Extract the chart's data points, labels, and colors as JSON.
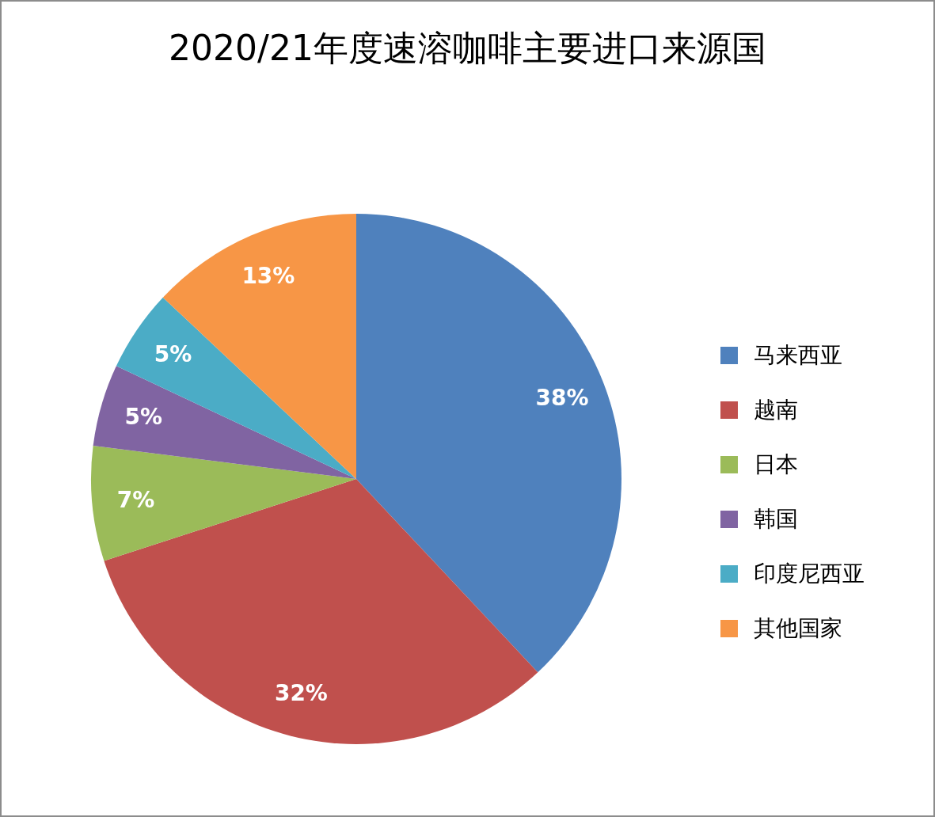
{
  "chart_data": {
    "type": "pie",
    "title": "2020/21年度速溶咖啡主要进口来源国",
    "categories": [
      "马来西亚",
      "越南",
      "日本",
      "韩国",
      "印度尼西亚",
      "其他国家"
    ],
    "values": [
      38,
      32,
      7,
      5,
      5,
      13
    ],
    "colors": [
      "#4f81bd",
      "#c0504d",
      "#9bbb59",
      "#8064a2",
      "#4bacc6",
      "#f79646"
    ],
    "value_labels": [
      "38%",
      "32%",
      "7%",
      "5%",
      "5%",
      "13%"
    ],
    "legend": "right"
  }
}
